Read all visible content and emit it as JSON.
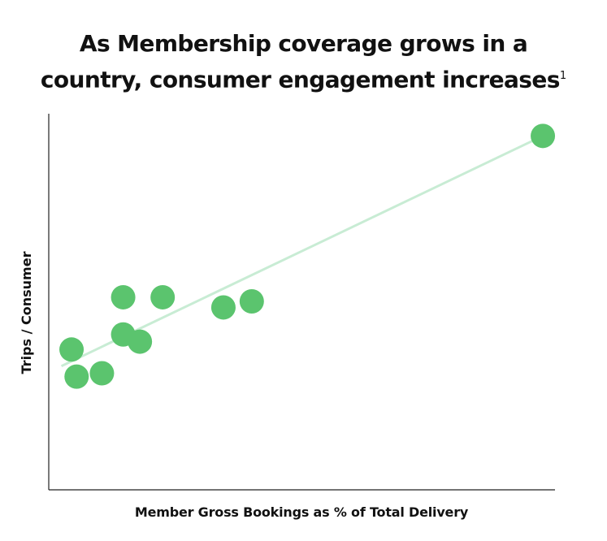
{
  "title": {
    "line1": "As Membership coverage grows in a",
    "line2": "country, consumer engagement increases",
    "footnote": "1"
  },
  "colors": {
    "points": "#5bc46e",
    "trendline": "#c8ecd4",
    "axis": "#222222",
    "text": "#111111"
  },
  "chart_data": {
    "type": "scatter",
    "title": "As Membership coverage grows in a country, consumer engagement increases",
    "xlabel": "Member Gross Bookings as % of Total Delivery",
    "ylabel": "Trips / Consumer",
    "xlim": [
      0,
      100
    ],
    "ylim": [
      0,
      100
    ],
    "axis_ticks_shown": false,
    "grid": false,
    "legend": "none",
    "x": [
      4.5,
      5.5,
      10.5,
      14.7,
      14.7,
      18.0,
      22.5,
      34.5,
      40.1,
      97.6
    ],
    "y": [
      37.3,
      30.1,
      31.0,
      41.3,
      51.2,
      39.4,
      51.2,
      48.5,
      50.1,
      94.1
    ],
    "trendline": {
      "x": [
        2.5,
        97.6
      ],
      "y": [
        32.9,
        94.1
      ]
    }
  }
}
